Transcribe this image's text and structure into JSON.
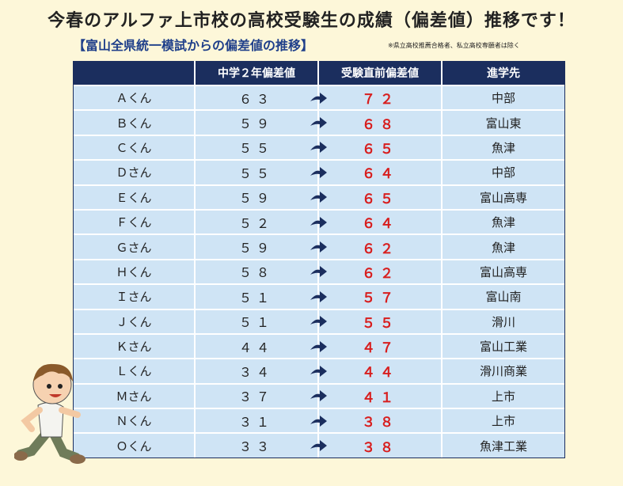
{
  "title": "今春のアルファ上市校の高校受験生の成績（偏差値）推移です！",
  "subtitle": "【富山全県統一模試からの偏差値の推移】",
  "note": "※県立高校推薦合格者、私立高校専願者は除く",
  "table": {
    "headers": [
      "",
      "中学２年偏差値",
      "受験直前偏差値",
      "進学先"
    ],
    "rows": [
      {
        "name": "Ａくん",
        "before": "６３",
        "after": "７２",
        "school": "中部"
      },
      {
        "name": "Ｂくん",
        "before": "５９",
        "after": "６８",
        "school": "富山東"
      },
      {
        "name": "Ｃくん",
        "before": "５５",
        "after": "６５",
        "school": "魚津"
      },
      {
        "name": "Ｄさん",
        "before": "５５",
        "after": "６４",
        "school": "中部"
      },
      {
        "name": "Ｅくん",
        "before": "５９",
        "after": "６５",
        "school": "富山高専"
      },
      {
        "name": "Ｆくん",
        "before": "５２",
        "after": "６４",
        "school": "魚津"
      },
      {
        "name": "Ｇさん",
        "before": "５９",
        "after": "６２",
        "school": "魚津"
      },
      {
        "name": "Ｈくん",
        "before": "５８",
        "after": "６２",
        "school": "富山高専"
      },
      {
        "name": "Ｉさん",
        "before": "５１",
        "after": "５７",
        "school": "富山南"
      },
      {
        "name": "Ｊくん",
        "before": "５１",
        "after": "５５",
        "school": "滑川"
      },
      {
        "name": "Ｋさん",
        "before": "４４",
        "after": "４７",
        "school": "富山工業"
      },
      {
        "name": "Ｌくん",
        "before": "３４",
        "after": "４４",
        "school": "滑川商業"
      },
      {
        "name": "Ｍさん",
        "before": "３７",
        "after": "４１",
        "school": "上市"
      },
      {
        "name": "Ｎくん",
        "before": "３１",
        "after": "３８",
        "school": "上市"
      },
      {
        "name": "Ｏくん",
        "before": "３３",
        "after": "３８",
        "school": "魚津工業"
      }
    ]
  },
  "icons": {
    "arrow": "arrow-right-icon",
    "mascot": "running-boy-illustration"
  },
  "colors": {
    "header_bg": "#1b2e5e",
    "row_bg": "#cfe4f5",
    "highlight": "#d81e1e",
    "page_bg": "#fdf7d9"
  }
}
